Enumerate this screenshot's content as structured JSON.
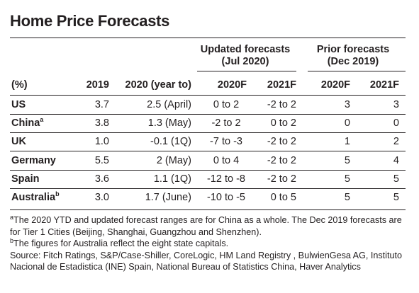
{
  "title": "Home Price Forecasts",
  "group_headers": {
    "updated_line1": "Updated forecasts",
    "updated_line2": "(Jul 2020)",
    "prior_line1": "Prior forecasts",
    "prior_line2": "(Dec 2019)"
  },
  "columns": [
    "(%)",
    "2019",
    "2020 (year to)",
    "2020F",
    "2021F",
    "2020F",
    "2021F"
  ],
  "rows": [
    {
      "country": "US",
      "sup": "",
      "v2019": "3.7",
      "ytd": "2.5 (April)",
      "u2020": "0 to 2",
      "u2021": "-2 to 2",
      "p2020": "3",
      "p2021": "3"
    },
    {
      "country": "China",
      "sup": "a",
      "v2019": "3.8",
      "ytd": "1.3 (May)",
      "u2020": "-2 to 2",
      "u2021": "0 to 2",
      "p2020": "0",
      "p2021": "0"
    },
    {
      "country": "UK",
      "sup": "",
      "v2019": "1.0",
      "ytd": "-0.1 (1Q)",
      "u2020": "-7 to -3",
      "u2021": "-2 to 2",
      "p2020": "1",
      "p2021": "2"
    },
    {
      "country": "Germany",
      "sup": "",
      "v2019": "5.5",
      "ytd": "2 (May)",
      "u2020": "0 to 4",
      "u2021": "-2 to 2",
      "p2020": "5",
      "p2021": "4"
    },
    {
      "country": "Spain",
      "sup": "",
      "v2019": "3.6",
      "ytd": "1.1 (1Q)",
      "u2020": "-12 to -8",
      "u2021": "-2 to 2",
      "p2020": "5",
      "p2021": "5"
    },
    {
      "country": "Australia",
      "sup": "b",
      "v2019": "3.0",
      "ytd": "1.7 (June)",
      "u2020": "-10 to -5",
      "u2021": "0 to 5",
      "p2020": "5",
      "p2021": "5"
    }
  ],
  "footnotes": {
    "a_mark": "a",
    "a_text": "The 2020 YTD and updated forecast ranges are for China as a whole. The Dec 2019 forecasts are for Tier 1 Cities (Beijing, Shanghai, Guangzhou and Shenzhen).",
    "b_mark": "b",
    "b_text": "The figures for Australia reflect the eight state capitals.",
    "source": "Source: Fitch Ratings, S&P/Case-Shiller, CoreLogic, HM Land Registry , BulwienGesa AG, Instituto Nacional de Estadistica (INE) Spain, National Bureau of Statistics China, Haver Analytics"
  }
}
